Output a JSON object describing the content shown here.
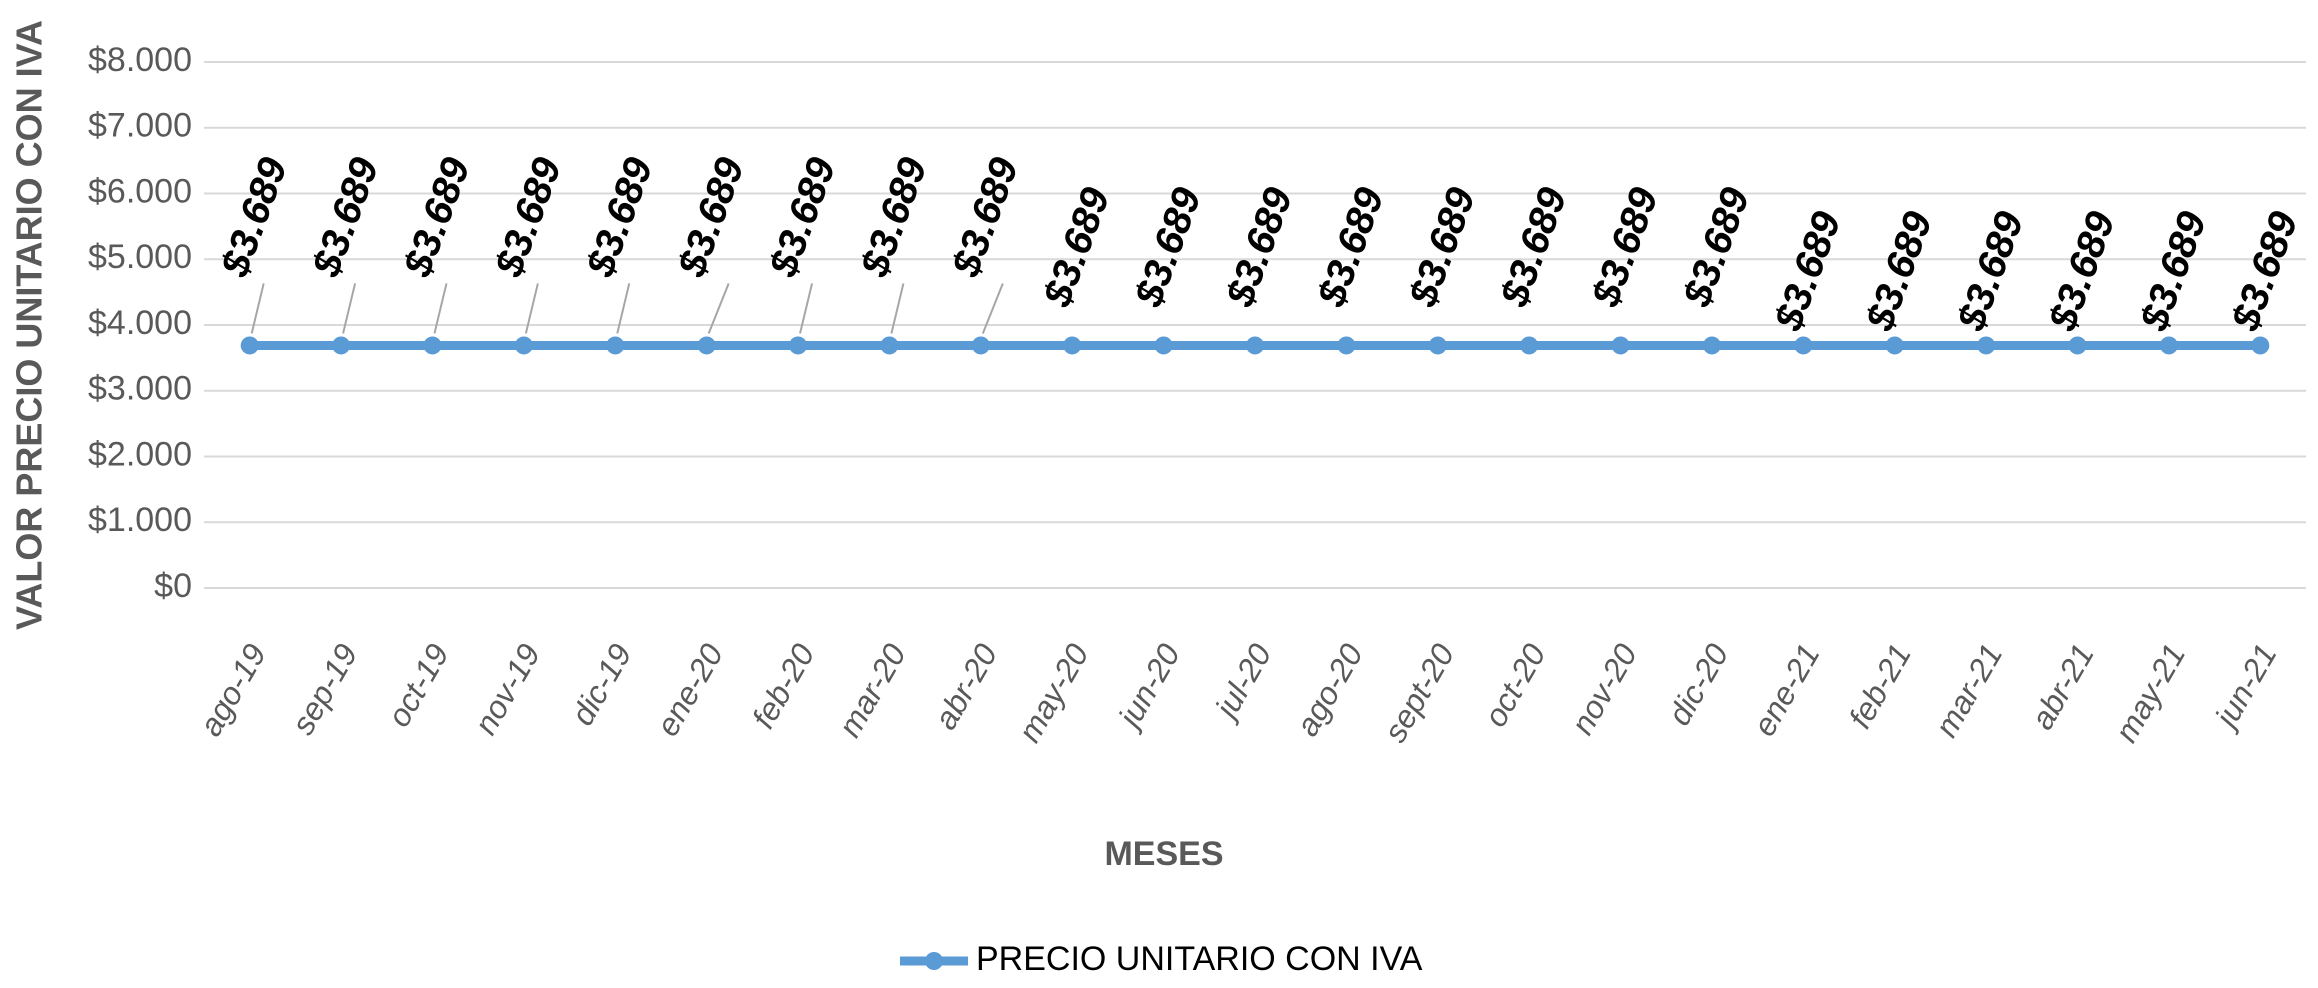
{
  "chart_data": {
    "type": "line",
    "y_axis_label": "VALOR PRECIO UNITARIO CON IVA",
    "x_axis_label": "MESES",
    "categories": [
      "ago-19",
      "sep-19",
      "oct-19",
      "nov-19",
      "dic-19",
      "ene-20",
      "feb-20",
      "mar-20",
      "abr-20",
      "may-20",
      "jun-20",
      "jul-20",
      "ago-20",
      "sept-20",
      "oct-20",
      "nov-20",
      "dic-20",
      "ene-21",
      "feb-21",
      "mar-21",
      "abr-21",
      "may-21",
      "jun-21"
    ],
    "series": [
      {
        "name": "PRECIO UNITARIO CON IVA",
        "color": "#5b9bd5",
        "values": [
          3689,
          3689,
          3689,
          3689,
          3689,
          3689,
          3689,
          3689,
          3689,
          3689,
          3689,
          3689,
          3689,
          3689,
          3689,
          3689,
          3689,
          3689,
          3689,
          3689,
          3689,
          3689,
          3689
        ],
        "value_labels": [
          "$3.689",
          "$3.689",
          "$3.689",
          "$3.689",
          "$3.689",
          "$3.689",
          "$3.689",
          "$3.689",
          "$3.689",
          "$3.689",
          "$3.689",
          "$3.689",
          "$3.689",
          "$3.689",
          "$3.689",
          "$3.689",
          "$3.689",
          "$3.689",
          "$3.689",
          "$3.689",
          "$3.689",
          "$3.689",
          "$3.689"
        ]
      }
    ],
    "ylim": [
      0,
      8000
    ],
    "yticks": [
      {
        "value": 0,
        "label": "$0"
      },
      {
        "value": 1000,
        "label": "$1.000"
      },
      {
        "value": 2000,
        "label": "$2.000"
      },
      {
        "value": 3000,
        "label": "$3.000"
      },
      {
        "value": 4000,
        "label": "$4.000"
      },
      {
        "value": 5000,
        "label": "$5.000"
      },
      {
        "value": 6000,
        "label": "$6.000"
      },
      {
        "value": 7000,
        "label": "$7.000"
      },
      {
        "value": 8000,
        "label": "$8.000"
      }
    ],
    "grid": true,
    "legend": "bottom"
  }
}
